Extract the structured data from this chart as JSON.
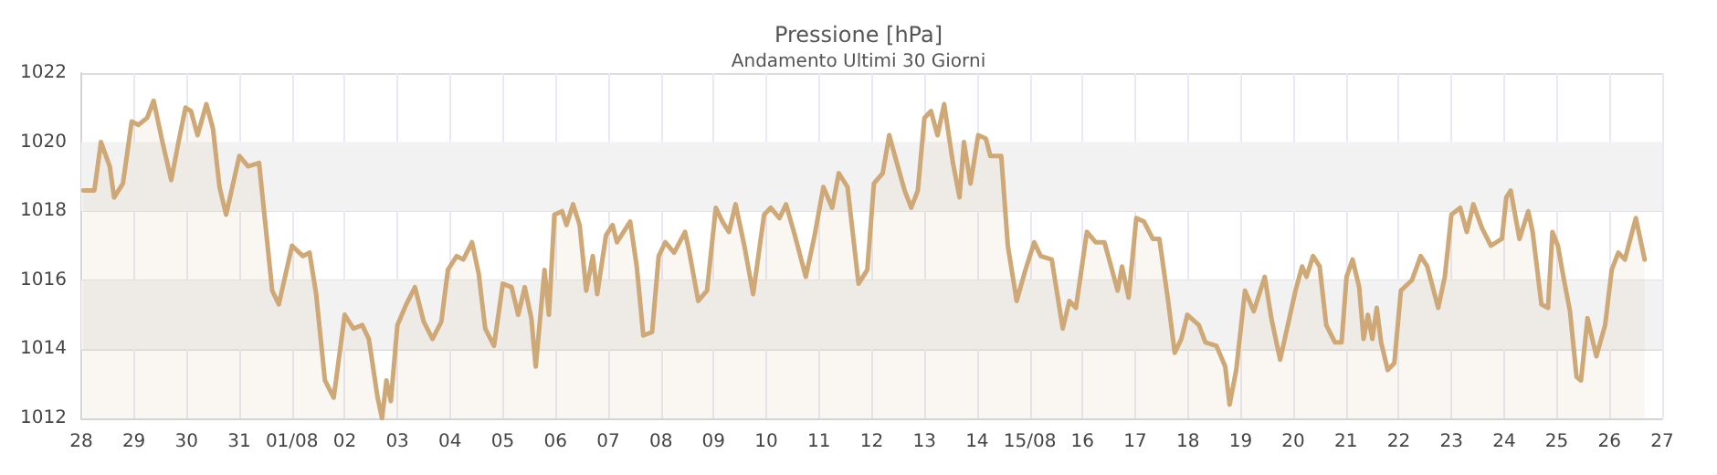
{
  "chart_data": {
    "type": "area",
    "title": "Pressione [hPa]",
    "subtitle": "Andamento Ultimi 30 Giorni",
    "x": [
      "--07-28T01:00",
      "--07-28T06:00",
      "--07-28T09:00",
      "--07-28T13:00",
      "--07-28T15:00",
      "--07-28T19:00",
      "--07-28T23:00",
      "--07-29T02:00",
      "--07-29T06:00",
      "--07-29T09:00",
      "--07-29T13:00",
      "--07-29T17:00",
      "--07-29T20:00",
      "--07-29T23:30",
      "--07-30T02:00",
      "--07-30T05:00",
      "--07-30T09:00",
      "--07-30T12:00",
      "--07-30T15:00",
      "--07-30T18:00",
      "--07-31T00:00",
      "--07-31T04:00",
      "--07-31T09:00",
      "--07-31T15:00",
      "--07-31T18:00",
      "--08-01T00:00",
      "--08-01T05:00",
      "--08-01T08:00",
      "--08-01T11:00",
      "--08-01T15:00",
      "--08-01T19:00",
      "--08-02T00:00",
      "--08-02T04:00",
      "--08-02T08:00",
      "--08-02T11:00",
      "--08-02T15:00",
      "--08-02T17:00",
      "--08-02T19:00",
      "--08-02T21:00",
      "--08-03T00:00",
      "--08-03T04:00",
      "--08-03T08:00",
      "--08-03T12:00",
      "--08-03T16:00",
      "--08-03T20:00",
      "--08-03T23:00",
      "--08-04T03:00",
      "--08-04T06:00",
      "--08-04T10:00",
      "--08-04T13:00",
      "--08-04T16:00",
      "--08-04T20:00",
      "--08-05T00:00",
      "--08-05T04:00",
      "--08-05T07:00",
      "--08-05T10:00",
      "--08-05T13:00",
      "--08-05T15:00",
      "--08-05T19:00",
      "--08-05T21:00",
      "--08-05T23:30",
      "--08-06T03:00",
      "--08-06T05:00",
      "--08-06T08:00",
      "--08-06T11:00",
      "--08-06T14:00",
      "--08-06T17:00",
      "--08-06T19:00",
      "--08-06T23:00",
      "--08-07T02:00",
      "--08-07T04:00",
      "--08-07T10:00",
      "--08-07T13:00",
      "--08-07T16:00",
      "--08-07T20:00",
      "--08-07T23:00",
      "--08-08T02:00",
      "--08-08T06:00",
      "--08-08T11:00",
      "--08-08T13:00",
      "--08-08T17:00",
      "--08-08T21:00",
      "--08-09T01:00",
      "--08-09T04:00",
      "--08-09T07:00",
      "--08-09T10:00",
      "--08-09T14:00",
      "--08-09T18:00",
      "--08-09T23:00",
      "--08-10T02:00",
      "--08-10T06:00",
      "--08-10T09:00",
      "--08-10T13:00",
      "--08-10T18:00",
      "--08-10T22:00",
      "--08-11T02:00",
      "--08-11T06:00",
      "--08-11T09:00",
      "--08-11T13:00",
      "--08-11T18:00",
      "--08-11T22:00",
      "--08-12T01:00",
      "--08-12T05:00",
      "--08-12T08:00",
      "--08-12T11:00",
      "--08-12T15:00",
      "--08-12T18:00",
      "--08-12T21:00",
      "--08-13T00:00",
      "--08-13T03:00",
      "--08-13T06:00",
      "--08-13T09:00",
      "--08-13T13:00",
      "--08-13T16:00",
      "--08-13T18:00",
      "--08-13T21:00",
      "--08-14T00:30",
      "--08-14T04:00",
      "--08-14T06:00",
      "--08-14T11:00",
      "--08-14T14:00",
      "--08-14T18:00",
      "--08-14T22:00",
      "--08-15T02:00",
      "--08-15T05:00",
      "--08-15T10:00",
      "--08-15T15:00",
      "--08-15T18:00",
      "--08-15T21:00",
      "--08-16T02:00",
      "--08-16T06:00",
      "--08-16T10:00",
      "--08-16T13:00",
      "--08-16T16:00",
      "--08-16T18:00",
      "--08-16T21:00",
      "--08-17T00:30",
      "--08-17T04:00",
      "--08-17T08:00",
      "--08-17T11:00",
      "--08-17T15:00",
      "--08-17T18:00",
      "--08-17T21:00",
      "--08-17T23:45",
      "--08-18T05:00",
      "--08-18T08:00",
      "--08-18T13:00",
      "--08-18T17:00",
      "--08-18T19:00",
      "--08-18T22:00",
      "--08-19T02:00",
      "--08-19T06:00",
      "--08-19T11:00",
      "--08-19T14:00",
      "--08-19T18:00",
      "--08-20T01:00",
      "--08-20T04:00",
      "--08-20T06:00",
      "--08-20T09:00",
      "--08-20T12:00",
      "--08-20T15:00",
      "--08-20T19:00",
      "--08-20T22:00",
      "--08-21T00:15",
      "--08-21T03:00",
      "--08-21T06:00",
      "--08-21T08:00",
      "--08-21T10:00",
      "--08-21T12:00",
      "--08-21T14:00",
      "--08-21T16:00",
      "--08-21T19:00",
      "--08-21T22:00",
      "--08-22T01:00",
      "--08-22T06:00",
      "--08-22T10:00",
      "--08-22T13:00",
      "--08-22T18:00",
      "--08-22T21:00",
      "--08-23T00:00",
      "--08-23T04:00",
      "--08-23T07:00",
      "--08-23T10:00",
      "--08-23T14:00",
      "--08-23T18:00",
      "--08-23T23:00",
      "--08-24T01:00",
      "--08-24T03:00",
      "--08-24T07:00",
      "--08-24T11:00",
      "--08-24T13:00",
      "--08-24T17:00",
      "--08-24T20:00",
      "--08-24T22:00",
      "--08-25T00:30",
      "--08-25T03:00",
      "--08-25T06:00",
      "--08-25T09:00",
      "--08-25T11:00",
      "--08-25T14:00",
      "--08-25T18:00",
      "--08-25T22:00",
      "--08-26T01:00",
      "--08-26T04:00",
      "--08-26T07:00",
      "--08-26T12:00",
      "--08-26T16:00"
    ],
    "series": [
      {
        "color": "#cfa877",
        "values": [
          1018.6,
          1018.6,
          1020.0,
          1019.3,
          1018.4,
          1018.8,
          1020.6,
          1020.5,
          1020.7,
          1021.2,
          1020.0,
          1018.9,
          1019.9,
          1021.0,
          1020.9,
          1020.2,
          1021.1,
          1020.4,
          1018.7,
          1017.9,
          1019.6,
          1019.3,
          1019.4,
          1015.7,
          1015.3,
          1017.0,
          1016.7,
          1016.8,
          1015.6,
          1013.1,
          1012.6,
          1015.0,
          1014.6,
          1014.7,
          1014.3,
          1012.6,
          1012.0,
          1013.1,
          1012.5,
          1014.7,
          1015.3,
          1015.8,
          1014.8,
          1014.3,
          1014.8,
          1016.3,
          1016.7,
          1016.6,
          1017.1,
          1016.2,
          1014.6,
          1014.1,
          1015.9,
          1015.8,
          1015.0,
          1015.8,
          1014.9,
          1013.5,
          1016.3,
          1015.0,
          1017.9,
          1018.0,
          1017.6,
          1018.2,
          1017.6,
          1015.7,
          1016.7,
          1015.6,
          1017.3,
          1017.6,
          1017.1,
          1017.7,
          1016.4,
          1014.4,
          1014.5,
          1016.7,
          1017.1,
          1016.8,
          1017.4,
          1016.8,
          1015.4,
          1015.7,
          1018.1,
          1017.7,
          1017.4,
          1018.2,
          1017.0,
          1015.6,
          1017.9,
          1018.1,
          1017.8,
          1018.2,
          1017.3,
          1016.1,
          1017.3,
          1018.7,
          1018.1,
          1019.1,
          1018.7,
          1015.9,
          1016.3,
          1018.8,
          1019.1,
          1020.2,
          1019.5,
          1018.6,
          1018.1,
          1018.6,
          1020.7,
          1020.9,
          1020.2,
          1021.1,
          1019.4,
          1018.4,
          1020.0,
          1018.8,
          1020.2,
          1020.1,
          1019.6,
          1019.6,
          1017.0,
          1015.4,
          1016.3,
          1017.1,
          1016.7,
          1016.6,
          1014.6,
          1015.4,
          1015.2,
          1017.4,
          1017.1,
          1017.1,
          1016.4,
          1015.7,
          1016.4,
          1015.5,
          1017.8,
          1017.7,
          1017.2,
          1017.2,
          1015.4,
          1013.9,
          1014.3,
          1015.0,
          1014.7,
          1014.2,
          1014.1,
          1013.5,
          1012.4,
          1013.4,
          1015.7,
          1015.1,
          1016.1,
          1014.9,
          1013.7,
          1015.7,
          1016.4,
          1016.1,
          1016.7,
          1016.4,
          1014.7,
          1014.2,
          1014.2,
          1016.1,
          1016.6,
          1015.8,
          1014.3,
          1015.0,
          1014.3,
          1015.2,
          1014.2,
          1013.4,
          1013.6,
          1015.7,
          1016.0,
          1016.7,
          1016.4,
          1015.2,
          1016.1,
          1017.9,
          1018.1,
          1017.4,
          1018.2,
          1017.5,
          1017.0,
          1017.2,
          1018.4,
          1018.6,
          1017.2,
          1018.0,
          1017.4,
          1015.3,
          1015.2,
          1017.4,
          1017.0,
          1016.1,
          1015.1,
          1013.2,
          1013.1,
          1014.9,
          1013.8,
          1014.7,
          1016.3,
          1016.8,
          1016.6,
          1017.8,
          1016.6
        ]
      }
    ],
    "xlim": [
      "--07-28",
      "--08-27"
    ],
    "xticks": [
      {
        "value": "--07-28",
        "label": "28"
      },
      {
        "value": "--07-29",
        "label": "29"
      },
      {
        "value": "--07-30",
        "label": "30"
      },
      {
        "value": "--07-31",
        "label": "31"
      },
      {
        "value": "--08-01",
        "label": "01/08"
      },
      {
        "value": "--08-02",
        "label": "02"
      },
      {
        "value": "--08-03",
        "label": "03"
      },
      {
        "value": "--08-04",
        "label": "04"
      },
      {
        "value": "--08-05",
        "label": "05"
      },
      {
        "value": "--08-06",
        "label": "06"
      },
      {
        "value": "--08-07",
        "label": "07"
      },
      {
        "value": "--08-08",
        "label": "08"
      },
      {
        "value": "--08-09",
        "label": "09"
      },
      {
        "value": "--08-10",
        "label": "10"
      },
      {
        "value": "--08-11",
        "label": "11"
      },
      {
        "value": "--08-12",
        "label": "12"
      },
      {
        "value": "--08-13",
        "label": "13"
      },
      {
        "value": "--08-14",
        "label": "14"
      },
      {
        "value": "--08-15",
        "label": "15/08"
      },
      {
        "value": "--08-16",
        "label": "16"
      },
      {
        "value": "--08-17",
        "label": "17"
      },
      {
        "value": "--08-18",
        "label": "18"
      },
      {
        "value": "--08-19",
        "label": "19"
      },
      {
        "value": "--08-20",
        "label": "20"
      },
      {
        "value": "--08-21",
        "label": "21"
      },
      {
        "value": "--08-22",
        "label": "22"
      },
      {
        "value": "--08-23",
        "label": "23"
      },
      {
        "value": "--08-24",
        "label": "24"
      },
      {
        "value": "--08-25",
        "label": "25"
      },
      {
        "value": "--08-26",
        "label": "26"
      },
      {
        "value": "--08-27",
        "label": "27"
      }
    ],
    "ylim": [
      1012,
      1022
    ],
    "yticks": [
      1012,
      1014,
      1016,
      1018,
      1020,
      1022
    ],
    "bands": [
      {
        "axis": "y",
        "from": 1014,
        "to": 1016,
        "color": "#f2f2f3"
      },
      {
        "axis": "y",
        "from": 1018,
        "to": 1020,
        "color": "#f2f2f3"
      }
    ],
    "grid": true,
    "marker": "none",
    "line_style": "solid"
  }
}
